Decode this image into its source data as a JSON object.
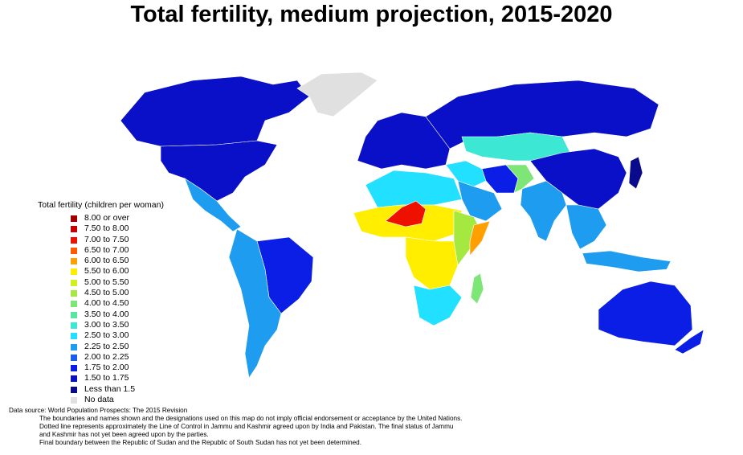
{
  "title": "Total fertility, medium projection, 2015-2020",
  "legend": {
    "title": "Total fertility (children per woman)",
    "items": [
      {
        "label": "8.00 or over",
        "color": "#a00000"
      },
      {
        "label": "7.50 to 8.00",
        "color": "#c80000"
      },
      {
        "label": "7.00 to 7.50",
        "color": "#ee1100"
      },
      {
        "label": "6.50 to 7.00",
        "color": "#ff5a00"
      },
      {
        "label": "6.00 to 6.50",
        "color": "#ffa000"
      },
      {
        "label": "5.50 to 6.00",
        "color": "#ffee00"
      },
      {
        "label": "5.00 to 5.50",
        "color": "#d2f020"
      },
      {
        "label": "4.50 to 5.00",
        "color": "#a4e840"
      },
      {
        "label": "4.00 to 4.50",
        "color": "#7ee676"
      },
      {
        "label": "3.50 to 4.00",
        "color": "#5ae6a0"
      },
      {
        "label": "3.00 to 3.50",
        "color": "#3ce8d4"
      },
      {
        "label": "2.50 to 3.00",
        "color": "#22e0ff"
      },
      {
        "label": "2.25 to 2.50",
        "color": "#1e9cf0"
      },
      {
        "label": "2.00 to 2.25",
        "color": "#1560ee"
      },
      {
        "label": "1.75 to 2.00",
        "color": "#0a1ee6"
      },
      {
        "label": "1.50 to 1.75",
        "color": "#0a0fc8"
      },
      {
        "label": "Less than 1.5",
        "color": "#0a0a8c"
      },
      {
        "label": "No data",
        "color": "#e0e0e0"
      }
    ]
  },
  "footer": {
    "source": "Data source: World Population Prospects: The 2015 Revision",
    "notes": [
      "The boundaries and names shown and the designations used on this map do not imply official endorsement or acceptance by the United Nations.",
      "Dotted line represents approximately the Line of Control in Jammu and Kashmir agreed upon by India and Pakistan. The final status of Jammu",
      "and Kashmir has not yet been agreed upon by the parties.",
      "Final boundary between the Republic of Sudan and the Republic of South Sudan has not yet been determined."
    ]
  },
  "regions": {
    "north_america": "#0a0fc8",
    "canada": "#0a0fc8",
    "greenland": "#e0e0e0",
    "central_america": "#1e9cf0",
    "south_america_east": "#0a1ee6",
    "south_america_west": "#1e9cf0",
    "europe": "#0a0fc8",
    "russia": "#0a0fc8",
    "kazakhstan": "#3ce8d4",
    "china": "#0a0fc8",
    "north_africa": "#22e0ff",
    "sahel": "#ffee00",
    "niger": "#ee1100",
    "central_africa": "#ffee00",
    "east_africa": "#a4e840",
    "somalia": "#ffa000",
    "southern_africa": "#22e0ff",
    "madagascar": "#7ee676",
    "middle_east": "#22e0ff",
    "arabia": "#1e9cf0",
    "iran": "#0a1ee6",
    "afghanistan": "#7ee676",
    "india": "#1e9cf0",
    "southeast_asia": "#1e9cf0",
    "japan": "#0a0a8c",
    "indonesia": "#1e9cf0",
    "australia": "#0a1ee6",
    "new_zealand": "#0a1ee6"
  }
}
